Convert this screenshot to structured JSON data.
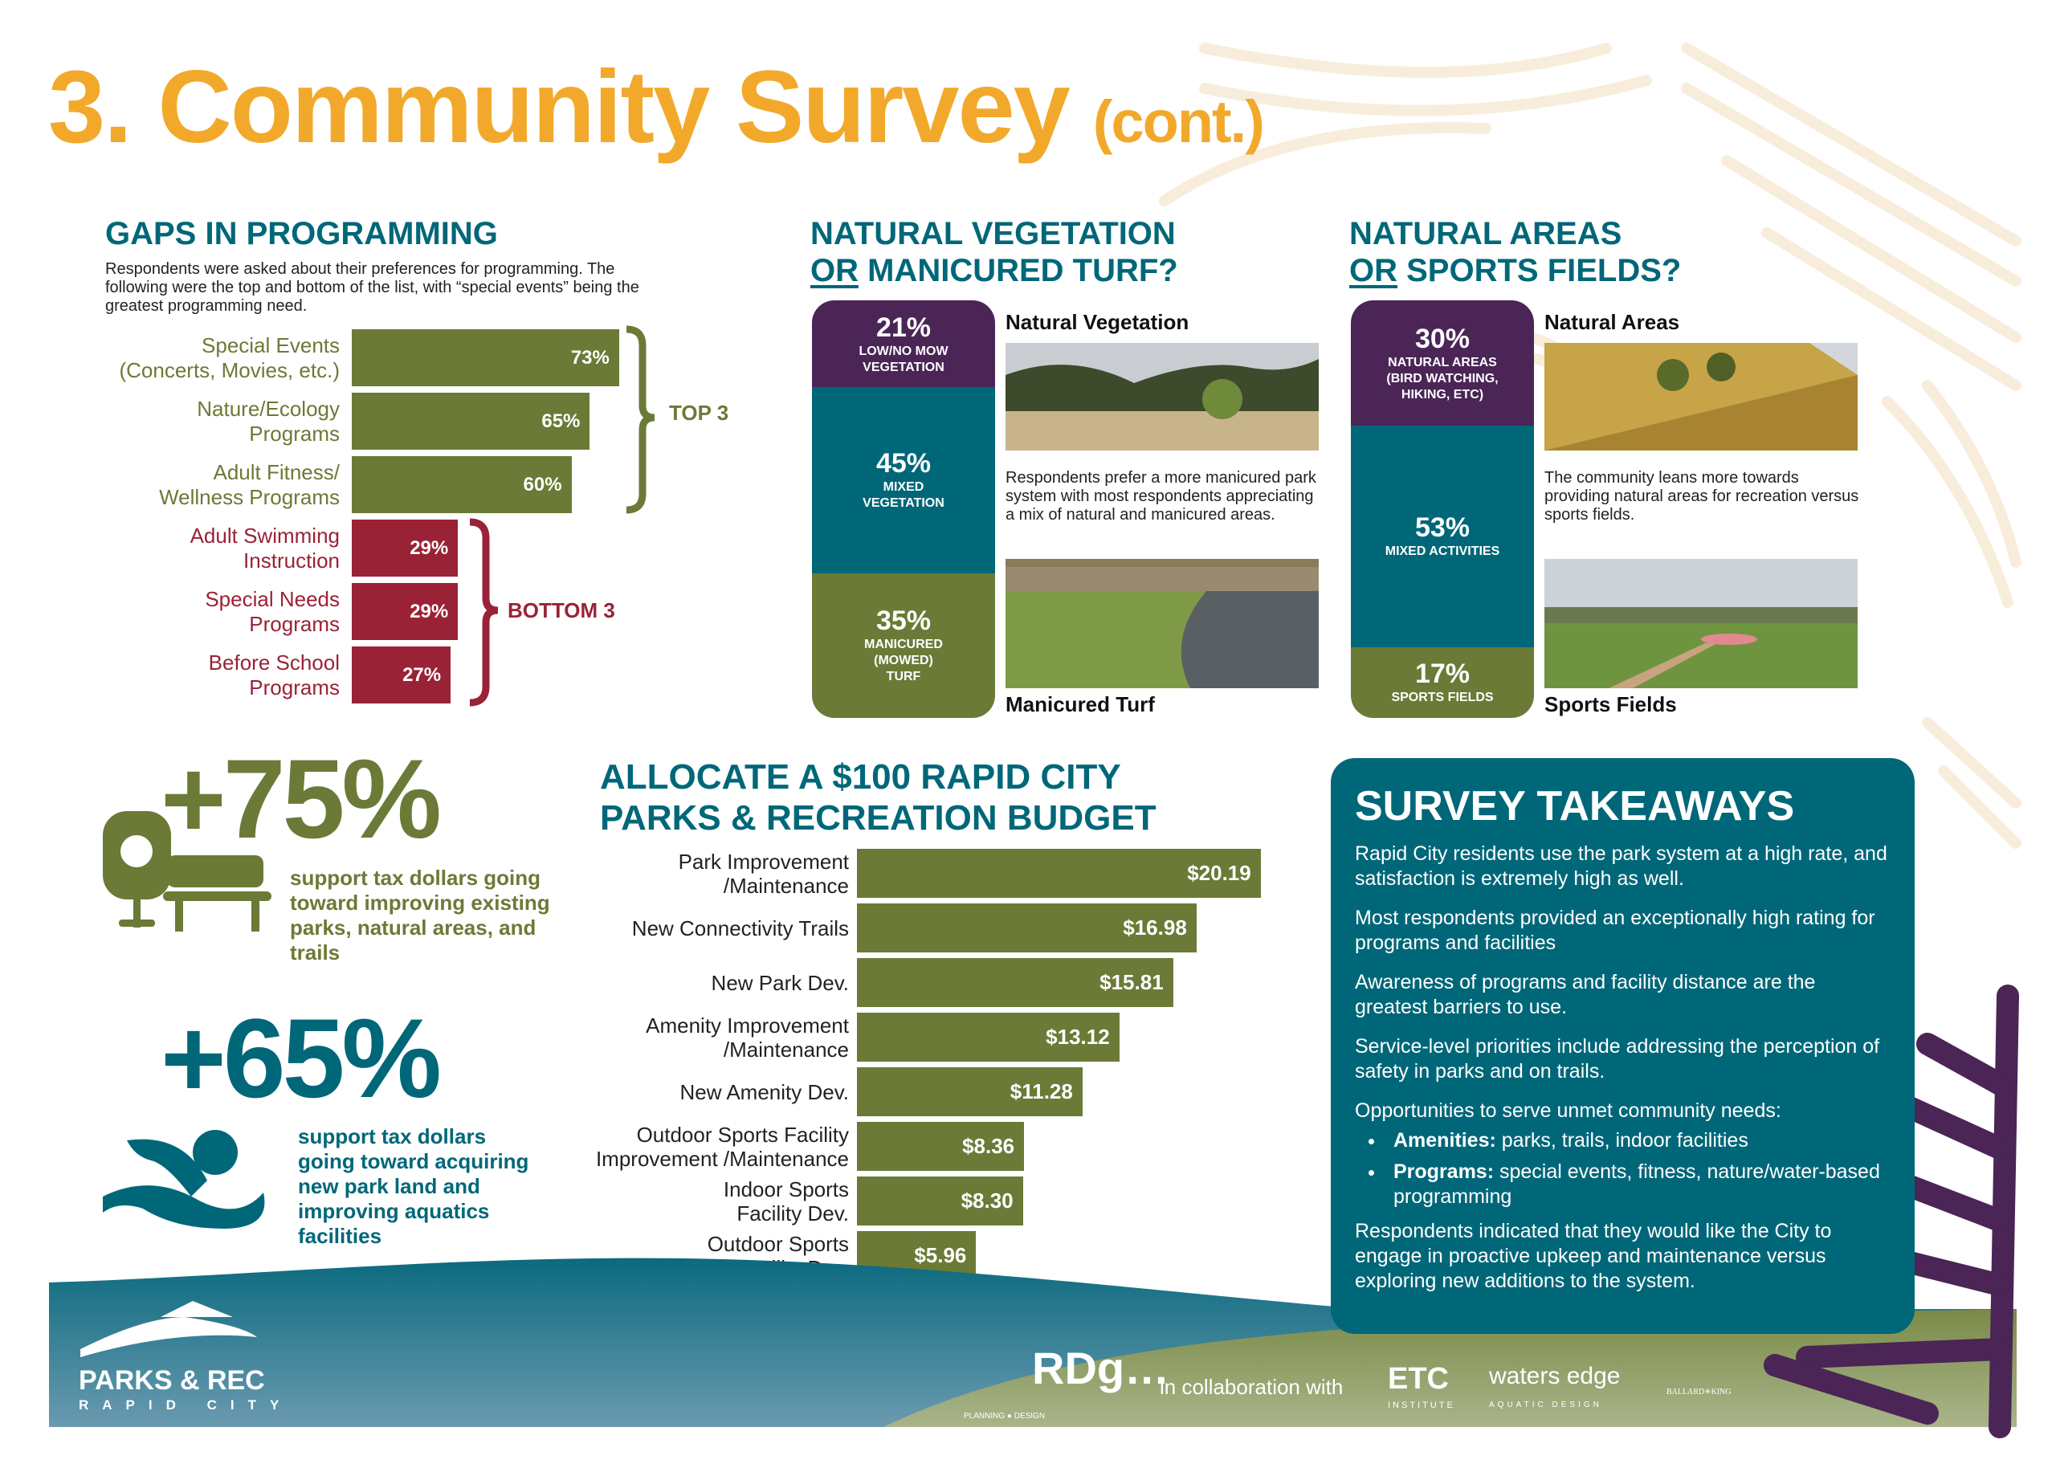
{
  "header": {
    "title": "3. Community Survey",
    "subtitle": "(cont.)"
  },
  "gaps": {
    "title": "GAPS IN PROGRAMMING",
    "description": "Respondents were asked about their preferences for programming. The following were the top and bottom of the list, with “special events” being the greatest programming need.",
    "top_label": "TOP 3",
    "bottom_label": "BOTTOM 3"
  },
  "vegetation": {
    "title_line1": "NATURAL VEGETATION",
    "title_or": "OR",
    "title_line2_rest": " MANICURED TURF?",
    "photo1_label": "Natural Vegetation",
    "photo2_label": "Manicured Turf",
    "text": "Respondents prefer a more manicured park system with most respondents appreciating a mix of natural and manicured areas."
  },
  "areas": {
    "title_line1": "NATURAL AREAS",
    "title_or": "OR",
    "title_line2_rest": " SPORTS FIELDS?",
    "photo1_label": "Natural Areas",
    "photo2_label": "Sports Fields",
    "text": "The community leans more towards providing natural areas for recreation versus sports fields."
  },
  "stat75": {
    "value": "+75%",
    "text": "support tax dollars going toward improving existing parks, natural areas, and trails"
  },
  "stat65": {
    "value": "+65%",
    "text": "support tax dollars going toward acquiring new park land and improving aquatics facilities"
  },
  "budget": {
    "title_line1": "ALLOCATE A $100 RAPID CITY",
    "title_line2": "PARKS & RECREATION BUDGET"
  },
  "takeaways": {
    "title": "SURVEY TAKEAWAYS",
    "p1": "Rapid City residents use the park system at a high rate, and satisfaction is extremely high as well.",
    "p2": "Most respondents provided an exceptionally high rating for programs and facilities",
    "p3": "Awareness of programs and facility distance are the greatest barriers to use.",
    "p4": "Service-level priorities include addressing the perception of safety in parks and on trails.",
    "p5": "Opportunities to serve unmet community needs:",
    "b1_bold": "Amenities:",
    "b1_text": " parks, trails, indoor facilities",
    "b2_bold": "Programs:",
    "b2_text": " special events, fitness, nature/water-based programming",
    "p6": "Respondents indicated that they would like the City to engage in proactive upkeep and maintenance versus exploring new additions to the system."
  },
  "footer": {
    "parks_logo_line1": "PARKS & REC",
    "parks_logo_line2": "RAPID CITY",
    "rdg": "RDg…",
    "rdg_sub": "PLANNING ● DESIGN",
    "collab": "in collaboration with",
    "etc": "ETC",
    "etc_sub": "INSTITUTE",
    "waters": "waters edge",
    "waters_sub": "AQUATIC DESIGN",
    "bk": "BALLARD✳KING"
  },
  "colors": {
    "orange": "#f2a92b",
    "teal": "#006779",
    "olive": "#6b7a36",
    "maroon": "#9a2236",
    "purple": "#4a2556"
  },
  "chart_data": [
    {
      "type": "bar",
      "title": "GAPS IN PROGRAMMING",
      "orientation": "horizontal",
      "categories": [
        "Special Events\n(Concerts, Movies, etc.)",
        "Nature/Ecology\nPrograms",
        "Adult Fitness/\nWellness Programs",
        "Adult Swimming\nInstruction",
        "Special Needs\nPrograms",
        "Before School\nPrograms"
      ],
      "values": [
        73,
        65,
        60,
        29,
        29,
        27
      ],
      "value_labels": [
        "73%",
        "65%",
        "60%",
        "29%",
        "29%",
        "27%"
      ],
      "groups": [
        "top",
        "top",
        "top",
        "bottom",
        "bottom",
        "bottom"
      ],
      "unit": "%"
    },
    {
      "type": "bar",
      "title": "ALLOCATE A $100 RAPID CITY PARKS & RECREATION BUDGET",
      "orientation": "horizontal",
      "categories": [
        "Park Improvement\n/Maintenance",
        "New Connectivity Trails",
        "New Park Dev.",
        "Amenity Improvement\n/Maintenance",
        "New Amenity Dev.",
        "Outdoor Sports Facility\nImprovement /Maintenance",
        "Indoor Sports\nFacility Dev.",
        "Outdoor Sports\nFacility Dev."
      ],
      "values": [
        20.19,
        16.98,
        15.81,
        13.12,
        11.28,
        8.36,
        8.3,
        5.96
      ],
      "value_labels": [
        "$20.19",
        "$16.98",
        "$15.81",
        "$13.12",
        "$11.28",
        "$8.36",
        "$8.30",
        "$5.96"
      ],
      "unit": "$"
    },
    {
      "type": "bar",
      "stacked": true,
      "title": "NATURAL VEGETATION OR MANICURED TURF?",
      "categories": [
        "LOW/NO MOW\nVEGETATION",
        "MIXED\nVEGETATION",
        "MANICURED\n(MOWED)\nTURF"
      ],
      "values": [
        21,
        45,
        35
      ],
      "value_labels": [
        "21%",
        "45%",
        "35%"
      ]
    },
    {
      "type": "bar",
      "stacked": true,
      "title": "NATURAL AREAS OR SPORTS FIELDS?",
      "categories": [
        "NATURAL AREAS\n(BIRD WATCHING,\nHIKING, ETC)",
        "MIXED ACTIVITIES",
        "SPORTS FIELDS"
      ],
      "values": [
        30,
        53,
        17
      ],
      "value_labels": [
        "30%",
        "53%",
        "17%"
      ]
    }
  ]
}
